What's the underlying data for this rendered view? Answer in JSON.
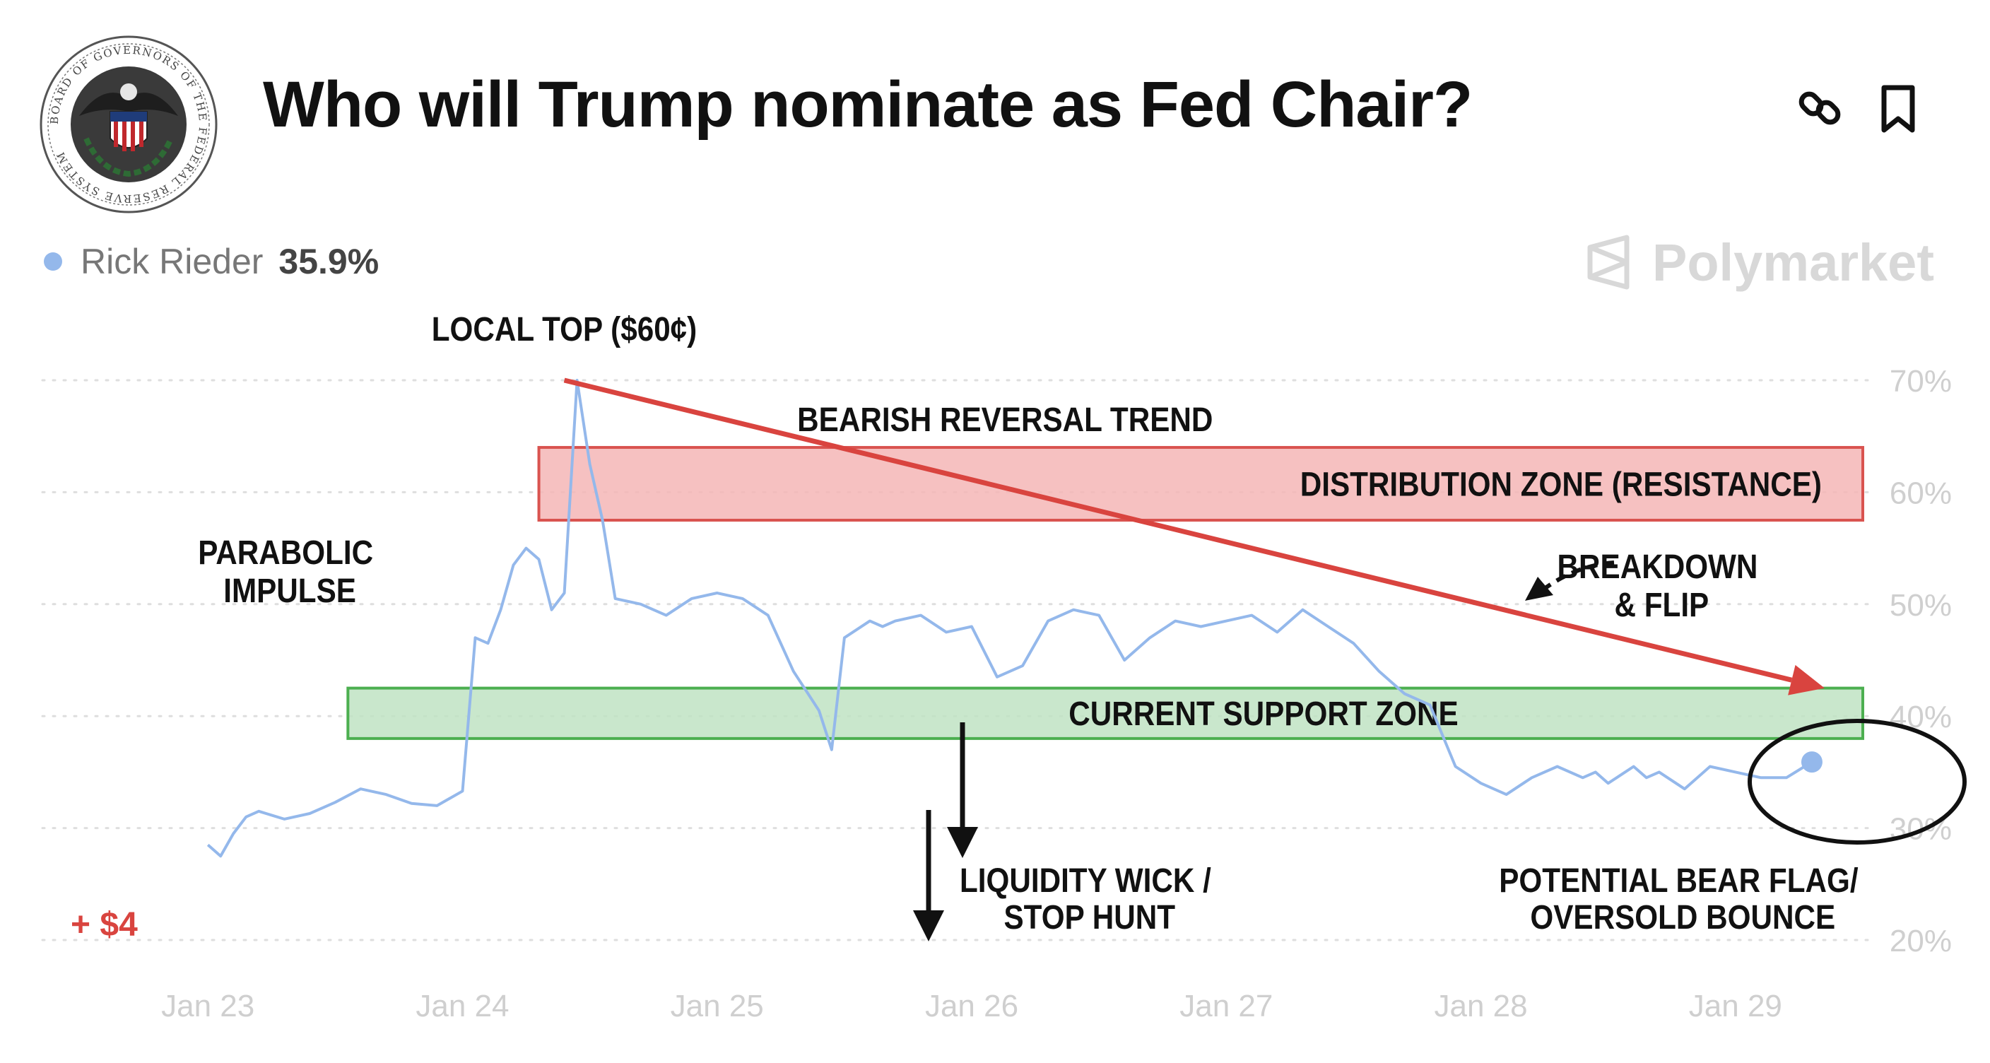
{
  "header": {
    "title": "Who will Trump nominate as Fed Chair?",
    "seal_text": "BOARD OF GOVERNORS OF THE FEDERAL RESERVE SYSTEM"
  },
  "legend": {
    "name": "Rick Rieder",
    "value": "35.9%"
  },
  "brand": {
    "name": "Polymarket"
  },
  "colors": {
    "line": "#94b8eb",
    "resistance_fill": "#f4b6b6",
    "resistance_border": "#d9534f",
    "support_fill": "#bfe3c3",
    "support_border": "#4caf50",
    "trend_arrow": "#d9443f",
    "pnl": "#d9443f"
  },
  "chart_data": {
    "type": "line",
    "title": "Who will Trump nominate as Fed Chair?",
    "series": [
      {
        "name": "Rick Rieder",
        "x": [
          23.0,
          23.05,
          23.1,
          23.15,
          23.2,
          23.3,
          23.4,
          23.5,
          23.6,
          23.7,
          23.8,
          23.9,
          24.0,
          24.05,
          24.1,
          24.15,
          24.2,
          24.25,
          24.3,
          24.35,
          24.4,
          24.45,
          24.5,
          24.55,
          24.6,
          24.7,
          24.8,
          24.9,
          25.0,
          25.1,
          25.2,
          25.3,
          25.4,
          25.45,
          25.5,
          25.6,
          25.65,
          25.7,
          25.8,
          25.9,
          26.0,
          26.1,
          26.2,
          26.3,
          26.4,
          26.5,
          26.6,
          26.7,
          26.8,
          26.9,
          27.0,
          27.1,
          27.2,
          27.3,
          27.4,
          27.5,
          27.6,
          27.7,
          27.8,
          27.9,
          28.0,
          28.1,
          28.2,
          28.3,
          28.4,
          28.45,
          28.5,
          28.6,
          28.65,
          28.7,
          28.8,
          28.9,
          29.0,
          29.1,
          29.2,
          29.3
        ],
        "values": [
          28.5,
          27.5,
          29.5,
          31.0,
          31.5,
          30.8,
          31.3,
          32.3,
          33.5,
          33.0,
          32.2,
          32.0,
          33.3,
          47.0,
          46.5,
          49.5,
          53.5,
          55.0,
          54.0,
          49.5,
          51.0,
          70.0,
          62.5,
          57.5,
          50.5,
          50.0,
          49.0,
          50.5,
          51.0,
          50.5,
          49.0,
          44.0,
          40.5,
          37.0,
          47.0,
          48.5,
          48.0,
          48.5,
          49.0,
          47.5,
          48.0,
          43.5,
          44.5,
          48.5,
          49.5,
          49.0,
          45.0,
          47.0,
          48.5,
          48.0,
          48.5,
          49.0,
          47.5,
          49.5,
          48.0,
          46.5,
          44.0,
          42.0,
          41.0,
          35.5,
          34.0,
          33.0,
          34.5,
          35.5,
          34.5,
          35.0,
          34.0,
          35.5,
          34.5,
          35.0,
          33.5,
          35.5,
          35.0,
          34.5,
          34.5,
          35.9
        ]
      }
    ],
    "x_ticks": [
      "Jan 23",
      "Jan 24",
      "Jan 25",
      "Jan 26",
      "Jan 27",
      "Jan 28",
      "Jan 29"
    ],
    "x_tick_values": [
      23,
      24,
      25,
      26,
      27,
      28,
      29
    ],
    "y_ticks": [
      "20%",
      "30%",
      "40%",
      "50%",
      "60%",
      "70%"
    ],
    "y_tick_values": [
      20,
      30,
      40,
      50,
      60,
      70
    ],
    "xlim": [
      22.35,
      29.5
    ],
    "ylim": [
      20,
      70
    ],
    "grid": true,
    "zones": [
      {
        "name": "resistance",
        "label": "DISTRIBUTION ZONE (RESISTANCE)",
        "x_start": 24.3,
        "x_end": 29.5,
        "y_low": 57.5,
        "y_high": 64.0
      },
      {
        "name": "support",
        "label": "CURRENT SUPPORT ZONE",
        "x_start": 23.55,
        "x_end": 29.5,
        "y_low": 38.0,
        "y_high": 42.5
      }
    ],
    "trend_line": {
      "label": "BEARISH REVERSAL TREND",
      "from": [
        24.4,
        70.0
      ],
      "to": [
        29.35,
        42.5
      ]
    },
    "annotations": [
      {
        "text": "LOCAL TOP ($60¢)"
      },
      {
        "text": "BEARISH REVERSAL TREND"
      },
      {
        "lines": [
          "PARABOLIC",
          "IMPULSE"
        ]
      },
      {
        "lines": [
          "BREAKDOWN",
          "& FLIP"
        ]
      },
      {
        "lines": [
          "LIQUIDITY WICK /",
          "STOP HUNT"
        ]
      },
      {
        "lines": [
          "POTENTIAL BEAR FLAG/",
          "OVERSOLD BOUNCE"
        ]
      }
    ],
    "pnl_label": "+ $4"
  }
}
